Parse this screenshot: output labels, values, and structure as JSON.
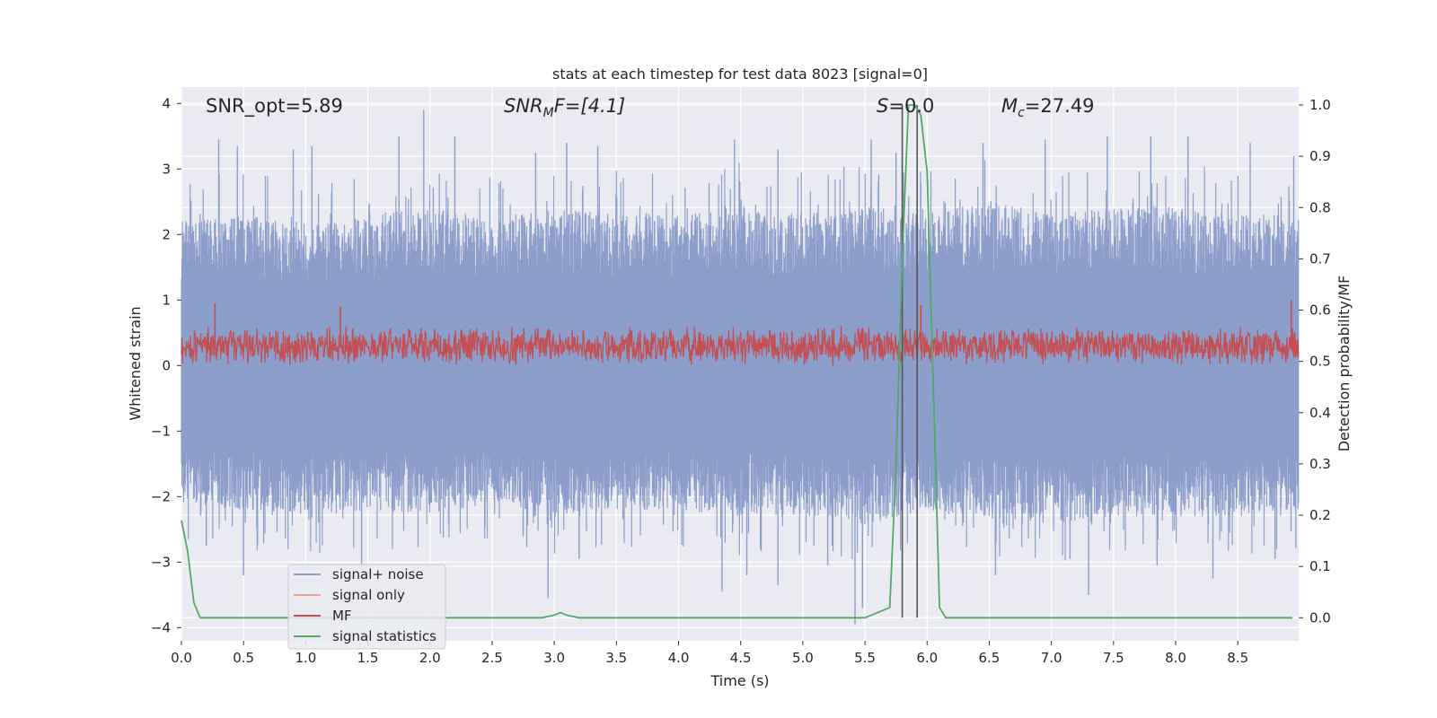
{
  "chart_data": {
    "type": "line",
    "title": "stats at each timestep for test data 8023 [signal=0]",
    "xlabel": "Time (s)",
    "ylabel_left": "Whitened strain",
    "ylabel_right": "Detection probability/MF",
    "xlim": [
      0.0,
      8.99
    ],
    "ylim_left": [
      -4.2,
      4.25
    ],
    "ylim_right": [
      -0.045,
      1.035
    ],
    "x_ticks": [
      "0.0",
      "0.5",
      "1.0",
      "1.5",
      "2.0",
      "2.5",
      "3.0",
      "3.5",
      "4.0",
      "4.5",
      "5.0",
      "5.5",
      "6.0",
      "6.5",
      "7.0",
      "7.5",
      "8.0",
      "8.5"
    ],
    "y_left_ticks": [
      "4",
      "3",
      "2",
      "1",
      "0",
      "−1",
      "−2",
      "−3",
      "−4"
    ],
    "y_right_ticks": [
      "1.0",
      "0.9",
      "0.8",
      "0.7",
      "0.6",
      "0.5",
      "0.4",
      "0.3",
      "0.2",
      "0.1",
      "0.0"
    ],
    "grid": true,
    "legend_position": "lower-left",
    "annotations": {
      "snr_opt": "SNR_opt=5.89",
      "snr_mf_main": "SNR",
      "snr_mf_sub": "M",
      "snr_mf_rest": "F=[4.1]",
      "s_main": "S",
      "s_rest": "=0.0",
      "mc_main": "M",
      "mc_sub": "c",
      "mc_rest": "=27.49"
    },
    "series": [
      {
        "name": "signal+ noise",
        "axis": "left",
        "color": "#8c9fca",
        "envelope": {
          "description_x": [
            0.0,
            0.5,
            1.0,
            1.5,
            2.0,
            2.5,
            3.0,
            3.5,
            4.0,
            4.5,
            5.0,
            5.5,
            6.0,
            6.5,
            7.0,
            7.5,
            8.0,
            8.5,
            8.99
          ],
          "upper_typical": [
            2.1,
            2.2,
            2.0,
            2.2,
            2.3,
            2.1,
            2.3,
            2.2,
            2.2,
            2.3,
            2.2,
            2.3,
            2.2,
            2.4,
            2.2,
            2.3,
            2.3,
            2.2,
            2.2
          ],
          "lower_typical": [
            -2.0,
            -2.1,
            -2.2,
            -2.1,
            -2.2,
            -2.0,
            -2.2,
            -2.1,
            -2.1,
            -2.2,
            -2.2,
            -2.3,
            -2.1,
            -2.2,
            -2.3,
            -2.2,
            -2.2,
            -2.2,
            -2.1
          ],
          "peaks_x": [
            0.3,
            0.45,
            0.9,
            1.05,
            1.75,
            1.95,
            2.2,
            2.85,
            3.1,
            3.35,
            4.45,
            4.8,
            5.55,
            5.75,
            6.45,
            6.95,
            7.45,
            7.8,
            8.1,
            8.6,
            8.95
          ],
          "peaks_y": [
            3.45,
            3.35,
            3.3,
            3.35,
            3.5,
            3.9,
            3.5,
            3.25,
            3.4,
            3.35,
            3.45,
            3.3,
            3.45,
            3.25,
            3.4,
            3.45,
            3.5,
            3.5,
            3.5,
            3.4,
            3.2
          ],
          "troughs_x": [
            0.2,
            0.5,
            1.45,
            2.75,
            2.95,
            3.2,
            4.35,
            4.55,
            4.8,
            5.2,
            5.42,
            5.48,
            6.55,
            7.15,
            7.3,
            7.85,
            8.3,
            8.8
          ],
          "troughs_y": [
            -2.75,
            -3.2,
            -3.05,
            -2.6,
            -3.55,
            -2.95,
            -3.45,
            -3.2,
            -3.35,
            -3.05,
            -3.95,
            -3.7,
            -3.2,
            -2.95,
            -3.5,
            -3.05,
            -3.25,
            -2.95
          ]
        }
      },
      {
        "name": "signal only",
        "axis": "left",
        "color": "#e8a588",
        "values": "flat zero (not visible)"
      },
      {
        "name": "MF",
        "axis": "left",
        "color": "#c44e52",
        "band": {
          "center": 0.3,
          "amplitude": 0.28,
          "spikes_x": [
            0.27,
            1.28,
            5.95,
            8.93
          ],
          "spikes_y": [
            0.95,
            0.9,
            0.92,
            1.0
          ]
        }
      },
      {
        "name": "signal statistics",
        "axis": "right",
        "color": "#55a868",
        "x": [
          0.0,
          0.05,
          0.1,
          0.15,
          0.2,
          0.3,
          0.5,
          1.0,
          2.0,
          2.5,
          2.8,
          2.9,
          3.0,
          3.05,
          3.1,
          3.2,
          3.5,
          4.0,
          5.0,
          5.5,
          5.7,
          5.75,
          5.8,
          5.85,
          5.9,
          5.95,
          6.0,
          6.05,
          6.1,
          6.15,
          8.94
        ],
        "y": [
          0.19,
          0.13,
          0.03,
          0.0,
          0.0,
          0.0,
          0.0,
          0.0,
          0.0,
          0.0,
          0.0,
          0.0,
          0.005,
          0.01,
          0.005,
          0.0,
          0.0,
          0.0,
          0.0,
          0.0,
          0.02,
          0.3,
          0.7,
          1.0,
          1.0,
          0.98,
          0.87,
          0.45,
          0.02,
          0.0,
          0.0
        ]
      }
    ],
    "vertical_markers": {
      "color": "#555555",
      "x": [
        5.8,
        5.92
      ]
    }
  }
}
